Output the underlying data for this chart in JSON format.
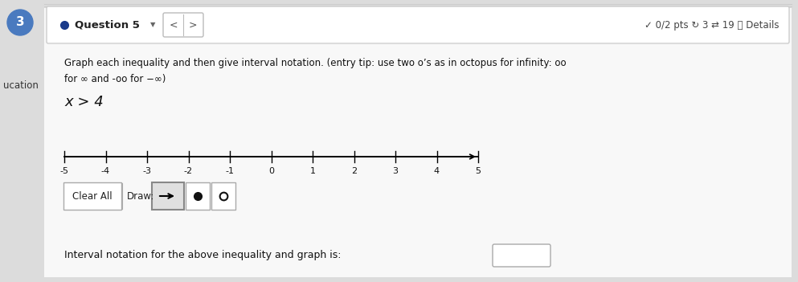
{
  "bg_color": "#dcdcdc",
  "content_bg": "#f5f5f5",
  "white": "#ffffff",
  "title_bar_text": "Question 5",
  "header_right": "✓ 0/2 pts ↻ 3 ⇄ 19 ⓘ Details",
  "instruction_line1": "Graph each inequality and then give interval notation. (entry tip: use two o’s as in octopus for infinity: oo",
  "instruction_line2": "for ∞ and -oo for −∞)",
  "left_label": "ucation",
  "inequality_text": "x > 4",
  "number_line_ticks": [
    -5,
    -4,
    -3,
    -2,
    -1,
    0,
    1,
    2,
    3,
    4,
    5
  ],
  "clear_all_btn": "Clear All",
  "draw_label": "Draw:",
  "interval_label": "Interval notation for the above inequality and graph is:",
  "circle_number": "3",
  "circle_bg": "#4a7abf",
  "bullet_color": "#1a3a8a"
}
